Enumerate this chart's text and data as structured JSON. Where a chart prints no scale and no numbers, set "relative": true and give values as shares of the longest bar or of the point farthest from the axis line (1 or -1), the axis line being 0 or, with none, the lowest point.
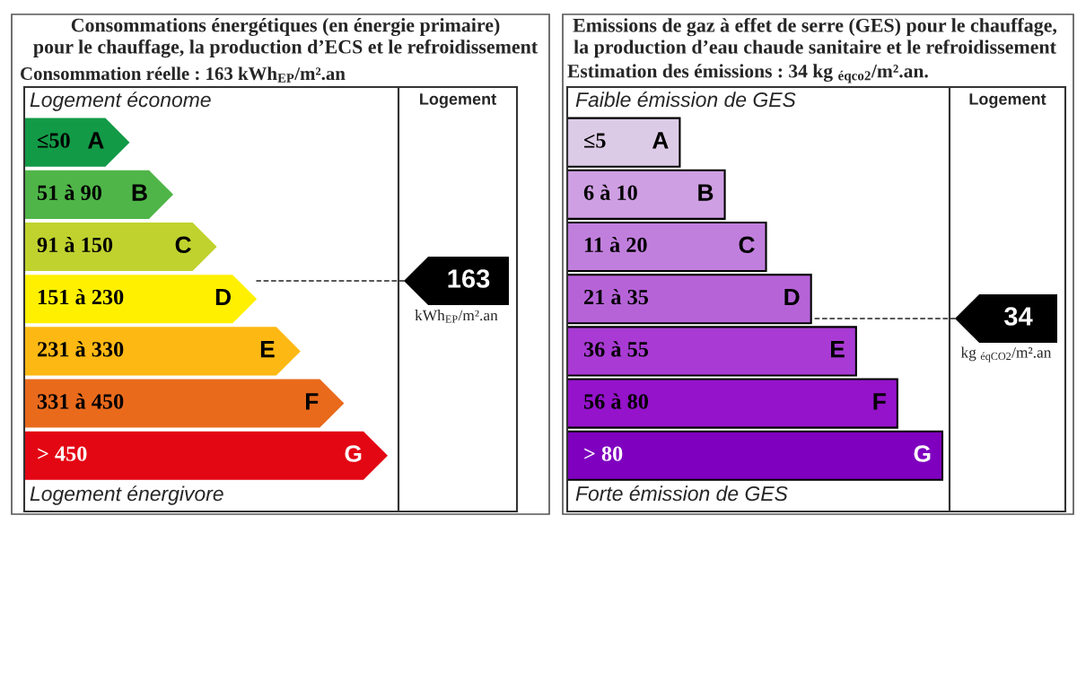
{
  "chart_data": [
    {
      "type": "bar",
      "orientation": "horizontal",
      "relative": true,
      "title": "Consommations énergétiques (en énergie primaire)\npour le chauffage, la production d’ECS et le refroidissement",
      "subtitle": "Consommation réelle : 163 kWh$_{EP}$/m².an",
      "categories": [
        "≤50",
        "51 à 90",
        "91 à 150",
        "151 à 230",
        "231 à 330",
        "331 à 450",
        "> 450"
      ],
      "values": [
        0.29,
        0.41,
        0.53,
        0.64,
        0.76,
        0.88,
        1
      ],
      "colors": [
        "#139a47",
        "#4fb548",
        "#c0d22e",
        "#fff000",
        "#fdb813",
        "#ea6a1c",
        "#e30613"
      ],
      "annotations": [
        "Logement économe",
        "Logement énergivore",
        "Logement",
        "kWh$_{EP}$/m².an",
        "163",
        {
          "text": "A",
          "x": 0.29,
          "y": "≤50"
        },
        {
          "text": "B",
          "x": 0.41,
          "y": "51 à 90"
        },
        {
          "text": "C",
          "x": 0.53,
          "y": "91 à 150"
        },
        {
          "text": "D",
          "x": 0.64,
          "y": "151 à 230"
        },
        {
          "text": "E",
          "x": 0.76,
          "y": "231 à 330"
        },
        {
          "text": "F",
          "x": 0.88,
          "y": "331 à 450"
        },
        {
          "text": "G",
          "x": 1,
          "y": "> 450"
        }
      ]
    },
    {
      "type": "bar",
      "orientation": "horizontal",
      "relative": true,
      "title": "Emissions de gaz à effet de serre (GES) pour le chauffage,\nla production d’eau chaude sanitaire et le refroidissement",
      "subtitle": "Estimation des émissions : 34 kg $_{éqco2}$/m².an.",
      "categories": [
        "≤5",
        "6 à 10",
        "11 à 20",
        "21 à 35",
        "36 à 55",
        "56 à 80",
        "> 80"
      ],
      "values": [
        0.3,
        0.42,
        0.53,
        0.65,
        0.77,
        0.88,
        1
      ],
      "colors": [
        "#dccbe6",
        "#cf9fe3",
        "#c17fdd",
        "#b663d8",
        "#a93bd4",
        "#9513cb",
        "#7f00bf"
      ],
      "annotations": [
        "Faible émission de GES",
        "Forte émission de GES",
        "Logement",
        "kg $_{éqCO2}$/m².an",
        "34",
        {
          "text": "A",
          "x": 0.3,
          "y": "≤5"
        },
        {
          "text": "B",
          "x": 0.42,
          "y": "6 à 10"
        },
        {
          "text": "C",
          "x": 0.53,
          "y": "11 à 20"
        },
        {
          "text": "D",
          "x": 0.65,
          "y": "21 à 35"
        },
        {
          "text": "E",
          "x": 0.77,
          "y": "36 à 55"
        },
        {
          "text": "F",
          "x": 0.88,
          "y": "56 à 80"
        },
        {
          "text": "G",
          "x": 1,
          "y": "> 80"
        }
      ]
    }
  ]
}
